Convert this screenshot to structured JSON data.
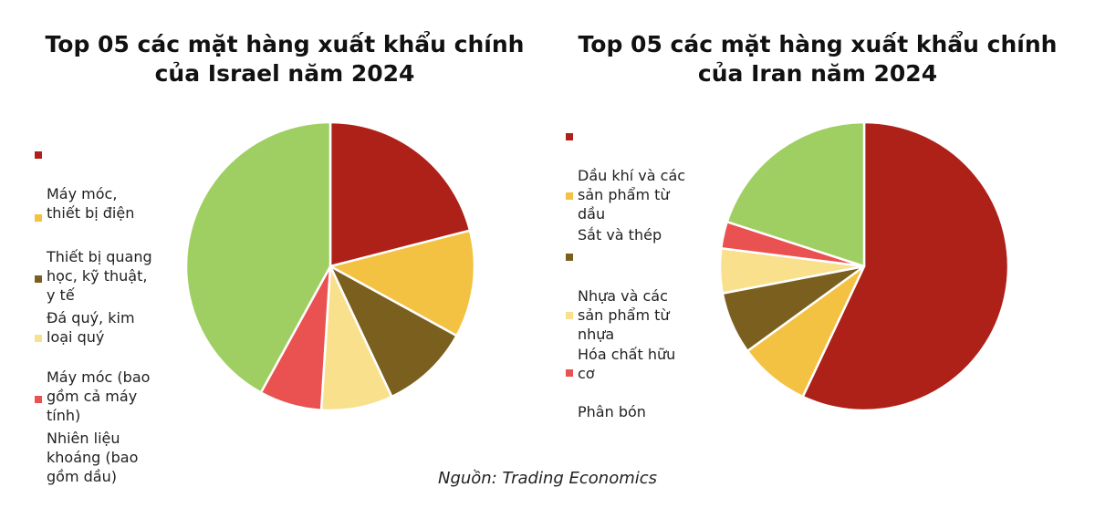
{
  "chart_data": [
    {
      "type": "pie",
      "title_lines": [
        "Top 05 các mặt hàng xuất khẩu chính",
        "của Israel năm 2024"
      ],
      "legend_placement": "left",
      "slices": [
        {
          "label": "Máy móc,\nthiết bị điện",
          "value": 21,
          "color": "#ae2118"
        },
        {
          "label": "Thiết bị quang\nhọc, kỹ thuật,\ny tế",
          "value": 12,
          "color": "#f4c243"
        },
        {
          "label": "Đá quý, kim\nloại quý",
          "value": 10,
          "color": "#7b5f1f"
        },
        {
          "label": "Máy móc (bao\ngồm cả máy\ntính)",
          "value": 8,
          "color": "#f9e08d"
        },
        {
          "label": "Nhiên liệu\nkhoáng (bao\ngồm dầu)",
          "value": 7,
          "color": "#ea5251"
        },
        {
          "label": "",
          "value": 42,
          "color": "#9fcf63"
        }
      ]
    },
    {
      "type": "pie",
      "title_lines": [
        "Top 05 các mặt hàng xuất khẩu chính",
        "của Iran năm 2024"
      ],
      "legend_placement": "left",
      "slices": [
        {
          "label": "Dầu khí và các\nsản phẩm từ\ndầu",
          "value": 57,
          "color": "#ae2118"
        },
        {
          "label": "Sắt và thép",
          "value": 8,
          "color": "#f4c243"
        },
        {
          "label": "Nhựa và các\nsản phẩm từ\nnhựa",
          "value": 7,
          "color": "#7b5f1f"
        },
        {
          "label": "Hóa chất hữu\ncơ",
          "value": 5,
          "color": "#f9e08d"
        },
        {
          "label": "Phân bón",
          "value": 3,
          "color": "#ea5251"
        },
        {
          "label": "",
          "value": 20,
          "color": "#9fcf63"
        }
      ]
    }
  ],
  "source": "Nguồn: Trading Economics"
}
